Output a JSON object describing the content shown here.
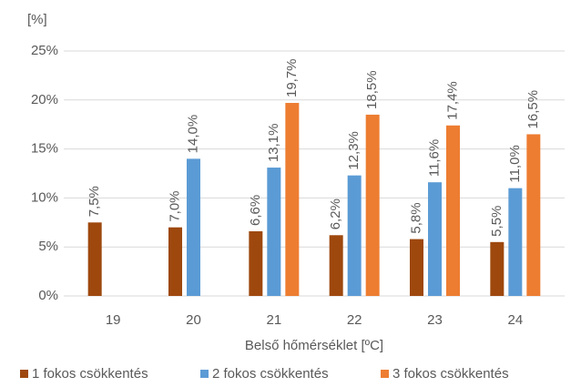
{
  "chart_data": {
    "type": "bar",
    "y_axis_label": "[%]",
    "x_axis_label": "Belső hőmérséklet [ºC]",
    "categories": [
      "19",
      "20",
      "21",
      "22",
      "23",
      "24"
    ],
    "series": [
      {
        "name": "1 fokos csökkentés",
        "color": "#9e480e",
        "values": [
          7.5,
          7.0,
          6.6,
          6.2,
          5.8,
          5.5
        ],
        "value_labels": [
          "7,5%",
          "7,0%",
          "6,6%",
          "6,2%",
          "5,8%",
          "5,5%"
        ]
      },
      {
        "name": "2 fokos csökkentés",
        "color": "#5b9bd5",
        "values": [
          null,
          14.0,
          13.1,
          12.3,
          11.6,
          11.0
        ],
        "value_labels": [
          null,
          "14,0%",
          "13,1%",
          "12,3%",
          "11,6%",
          "11,0%"
        ]
      },
      {
        "name": "3 fokos csökkentés",
        "color": "#ed7d31",
        "values": [
          null,
          null,
          19.7,
          18.5,
          17.4,
          16.5
        ],
        "value_labels": [
          null,
          null,
          "19,7%",
          "18,5%",
          "17,4%",
          "16,5%"
        ]
      }
    ],
    "ylim": [
      0,
      25
    ],
    "yticks": [
      {
        "value": 0,
        "label": "0%"
      },
      {
        "value": 5,
        "label": "5%"
      },
      {
        "value": 10,
        "label": "10%"
      },
      {
        "value": 15,
        "label": "15%"
      },
      {
        "value": 20,
        "label": "20%"
      },
      {
        "value": 25,
        "label": "25%"
      }
    ],
    "grid": true,
    "legend": "bottom"
  }
}
